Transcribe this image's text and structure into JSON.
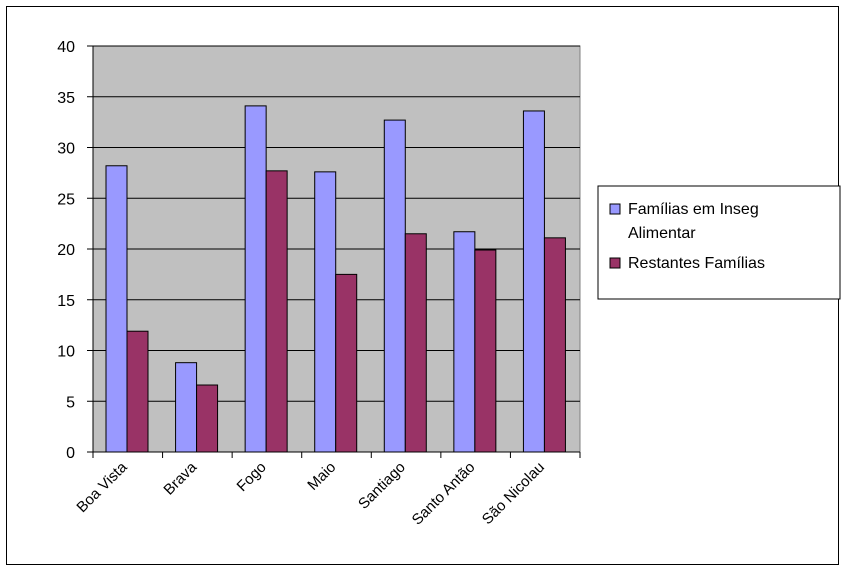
{
  "chart_data": {
    "type": "bar",
    "categories": [
      "Boa Vista",
      "Brava",
      "Fogo",
      "Maio",
      "Santiago",
      "Santo Antão",
      "São Nicolau"
    ],
    "series": [
      {
        "name": "Famílias em Inseg Alimentar",
        "color": "#9999ff",
        "values": [
          28.2,
          8.8,
          34.1,
          27.6,
          32.7,
          21.7,
          33.6
        ]
      },
      {
        "name": "Restantes Famílias",
        "color": "#993366",
        "values": [
          11.9,
          6.6,
          27.7,
          17.5,
          21.5,
          19.9,
          21.1
        ]
      }
    ],
    "ylim": [
      0,
      40
    ],
    "yticks": [
      0,
      5,
      10,
      15,
      20,
      25,
      30,
      35,
      40
    ],
    "grid": true,
    "plot_background": "#c0c0c0",
    "legend_position": "right",
    "legend_lines": [
      [
        "Famílias em Inseg",
        "Alimentar"
      ],
      [
        "Restantes Famílias"
      ]
    ]
  }
}
